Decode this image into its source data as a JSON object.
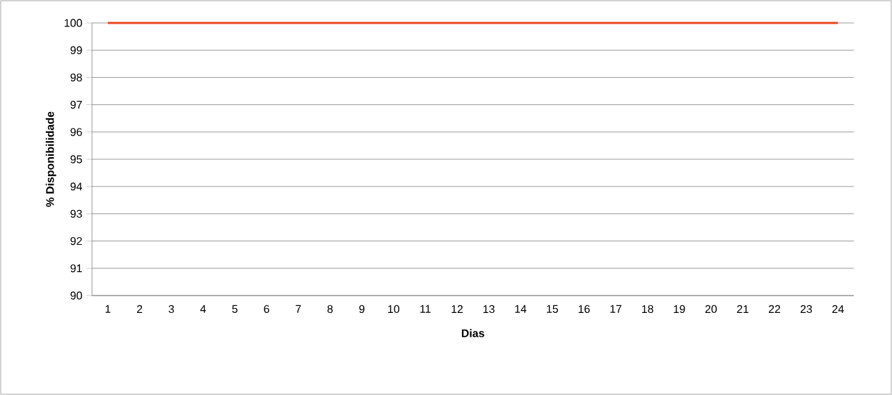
{
  "chart_data": {
    "type": "line",
    "xlabel": "Dias",
    "ylabel": "% Disponibilidade",
    "categories": [
      "1",
      "2",
      "3",
      "4",
      "5",
      "6",
      "7",
      "8",
      "9",
      "10",
      "11",
      "12",
      "13",
      "14",
      "15",
      "16",
      "17",
      "18",
      "19",
      "20",
      "21",
      "22",
      "23",
      "24"
    ],
    "values": [
      100,
      100,
      100,
      100,
      100,
      100,
      100,
      100,
      100,
      100,
      100,
      100,
      100,
      100,
      100,
      100,
      100,
      100,
      100,
      100,
      100,
      100,
      100,
      100
    ],
    "color": "#e8461e",
    "ylim": [
      90,
      100
    ],
    "yticks": [
      90,
      91,
      92,
      93,
      94,
      95,
      96,
      97,
      98,
      99,
      100
    ],
    "grid": "y"
  }
}
